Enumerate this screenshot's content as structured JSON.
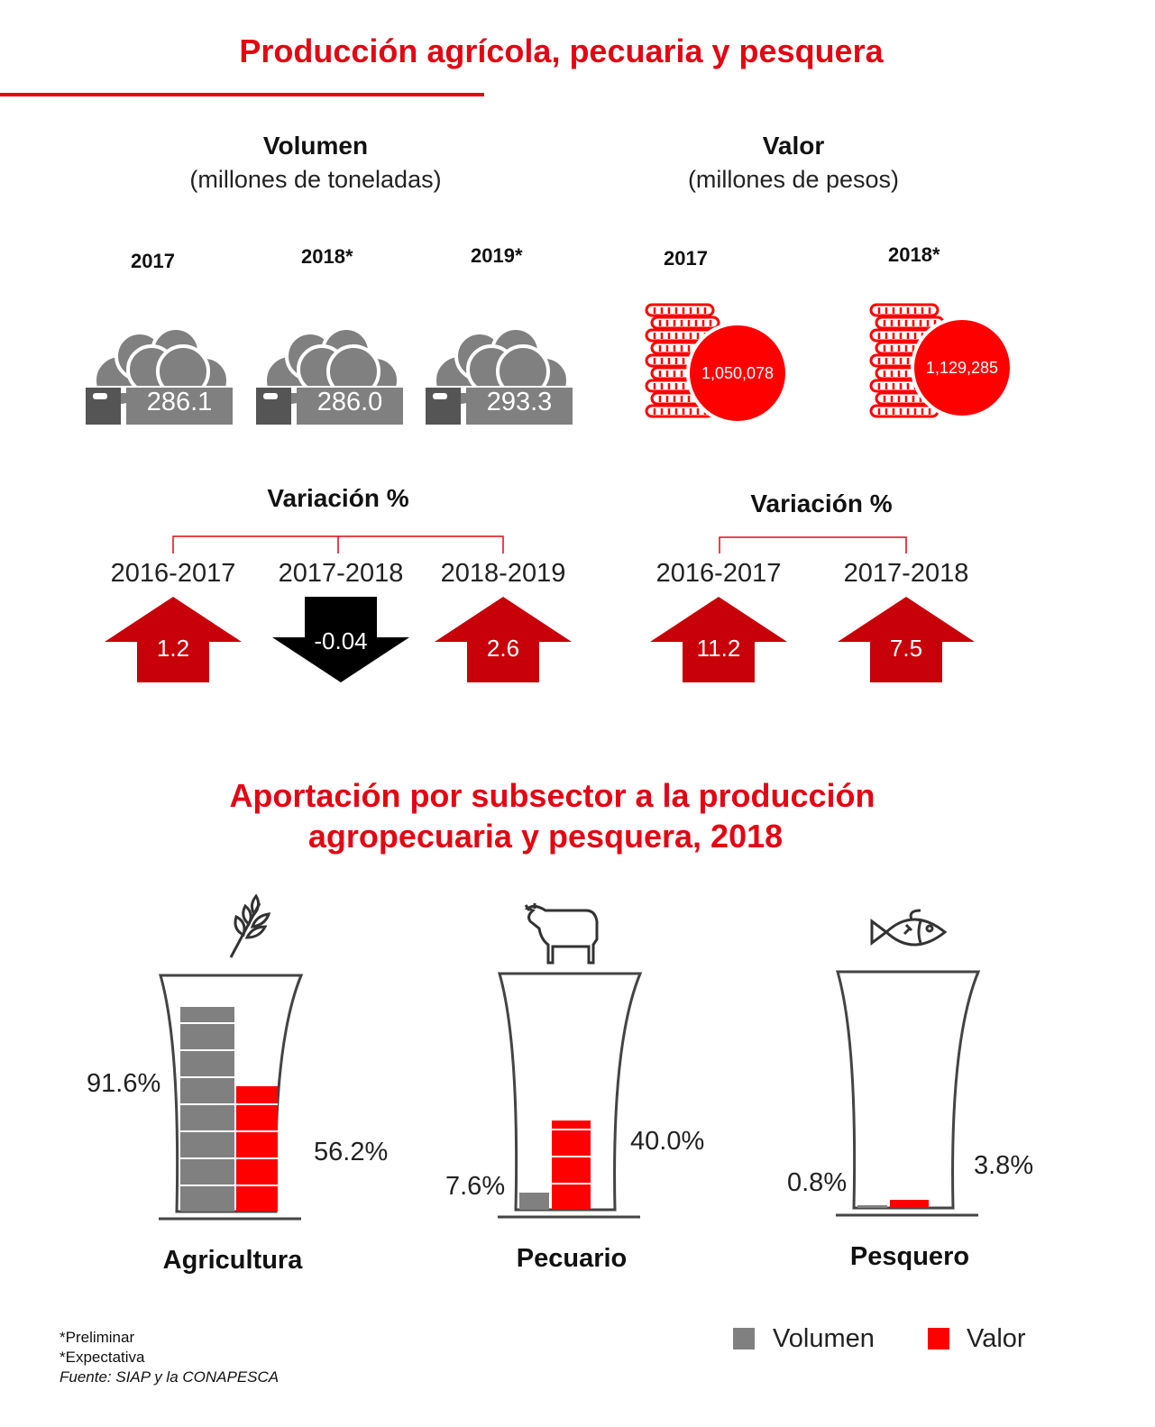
{
  "title": "Producción agrícola, pecuaria y pesquera",
  "volumen": {
    "heading": "Volumen",
    "unit": "(millones de toneladas)",
    "years": [
      {
        "label": "2017",
        "value": "286.1"
      },
      {
        "label": "2018*",
        "value": "286.0"
      },
      {
        "label": "2019*",
        "value": "293.3"
      }
    ],
    "variation_title": "Variación %",
    "variations": [
      {
        "period": "2016-2017",
        "value": "1.2",
        "direction": "up"
      },
      {
        "period": "2017-2018",
        "value": "-0.04",
        "direction": "down"
      },
      {
        "period": "2018-2019",
        "value": "2.6",
        "direction": "up"
      }
    ]
  },
  "valor": {
    "heading": "Valor",
    "unit": "(millones de pesos)",
    "years": [
      {
        "label": "2017",
        "value": "1,050,078"
      },
      {
        "label": "2018*",
        "value": "1,129,285"
      }
    ],
    "variation_title": "Variación %",
    "variations": [
      {
        "period": "2016-2017",
        "value": "11.2",
        "direction": "up"
      },
      {
        "period": "2017-2018",
        "value": "7.5",
        "direction": "up"
      }
    ]
  },
  "subsector_title_1": "Aportación por subsector a la producción",
  "subsector_title_2": "agropecuaria y pesquera, 2018",
  "colors": {
    "accent": "#e30613",
    "arrow_up": "#c8000a",
    "arrow_down": "#000000",
    "volumen": "#808080",
    "valor": "#ff0000"
  },
  "chart_data": {
    "type": "bar",
    "title": "Aportación por subsector a la producción agropecuaria y pesquera, 2018",
    "categories": [
      "Agricultura",
      "Pecuario",
      "Pesquero"
    ],
    "icons": [
      "wheat-icon",
      "cow-icon",
      "fish-icon"
    ],
    "series": [
      {
        "name": "Volumen",
        "values": [
          91.6,
          7.6,
          0.8
        ],
        "labels": [
          "91.6%",
          "7.6%",
          "0.8%"
        ]
      },
      {
        "name": "Valor",
        "values": [
          56.2,
          40.0,
          3.8
        ],
        "labels": [
          "56.2%",
          "40.0%",
          "3.8%"
        ]
      }
    ],
    "ylim": [
      0,
      100
    ]
  },
  "legend": [
    {
      "label": "Volumen"
    },
    {
      "label": "Valor"
    }
  ],
  "footnotes": [
    "*Preliminar",
    "*Expectativa",
    "Fuente: SIAP y la CONAPESCA"
  ]
}
